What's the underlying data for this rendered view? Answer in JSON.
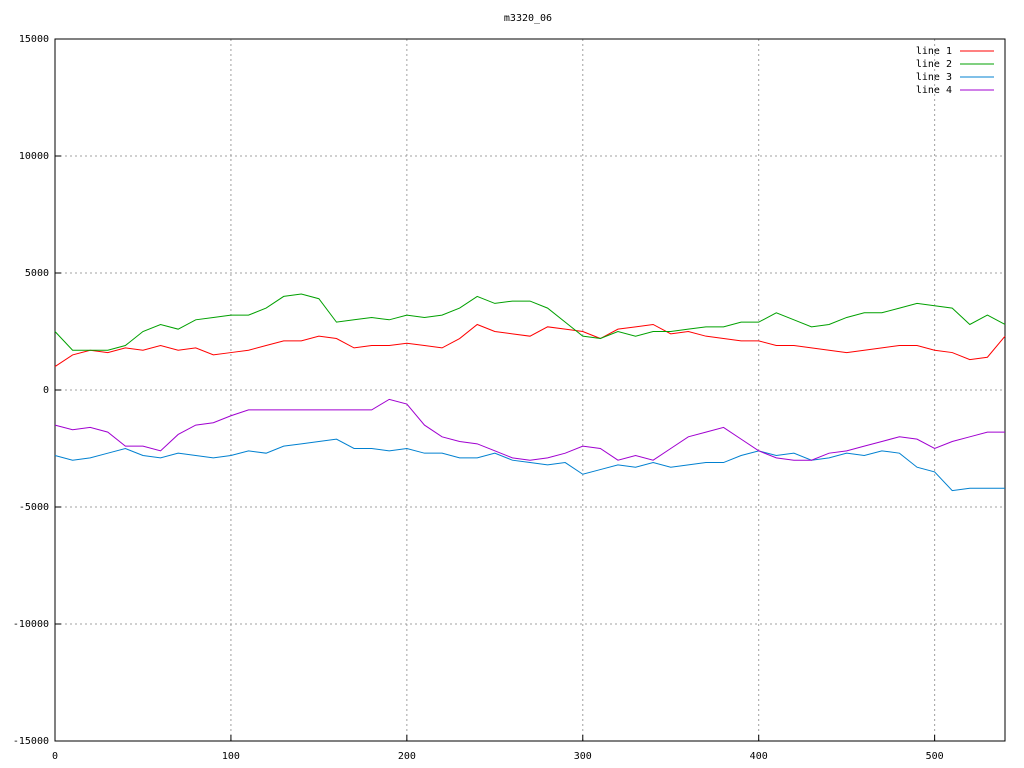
{
  "chart_data": {
    "type": "line",
    "title": "m3320_06",
    "x": [
      0,
      10,
      20,
      30,
      40,
      50,
      60,
      70,
      80,
      90,
      100,
      110,
      120,
      130,
      140,
      150,
      160,
      170,
      180,
      190,
      200,
      210,
      220,
      230,
      240,
      250,
      260,
      270,
      280,
      290,
      300,
      310,
      320,
      330,
      340,
      350,
      360,
      370,
      380,
      390,
      400,
      410,
      420,
      430,
      440,
      450,
      460,
      470,
      480,
      490,
      500,
      510,
      520,
      530,
      540
    ],
    "series": [
      {
        "name": "line 1",
        "color": "#ff0000",
        "values": [
          1000,
          1500,
          1700,
          1600,
          1800,
          1700,
          1900,
          1700,
          1800,
          1500,
          1600,
          1700,
          1900,
          2100,
          2100,
          2300,
          2200,
          1800,
          1900,
          1900,
          2000,
          1900,
          1800,
          2200,
          2800,
          2500,
          2400,
          2300,
          2700,
          2600,
          2500,
          2200,
          2600,
          2700,
          2800,
          2400,
          2500,
          2300,
          2200,
          2100,
          2100,
          1900,
          1900,
          1800,
          1700,
          1600,
          1700,
          1800,
          1900,
          1900,
          1700,
          1600,
          1300,
          1400,
          2300
        ]
      },
      {
        "name": "line 2",
        "color": "#00a000",
        "values": [
          2500,
          1700,
          1700,
          1700,
          1900,
          2500,
          2800,
          2600,
          3000,
          3100,
          3200,
          3200,
          3500,
          4000,
          4100,
          3900,
          2900,
          3000,
          3100,
          3000,
          3200,
          3100,
          3200,
          3500,
          4000,
          3700,
          3800,
          3800,
          3500,
          2900,
          2300,
          2200,
          2500,
          2300,
          2500,
          2500,
          2600,
          2700,
          2700,
          2900,
          2900,
          3300,
          3000,
          2700,
          2800,
          3100,
          3300,
          3300,
          3500,
          3700,
          3600,
          3500,
          2800,
          3200,
          2800
        ]
      },
      {
        "name": "line 3",
        "color": "#0080d0",
        "values": [
          -2800,
          -3000,
          -2900,
          -2700,
          -2500,
          -2800,
          -2900,
          -2700,
          -2800,
          -2900,
          -2800,
          -2600,
          -2700,
          -2400,
          -2300,
          -2200,
          -2100,
          -2500,
          -2500,
          -2600,
          -2500,
          -2700,
          -2700,
          -2900,
          -2900,
          -2700,
          -3000,
          -3100,
          -3200,
          -3100,
          -3600,
          -3400,
          -3200,
          -3300,
          -3100,
          -3300,
          -3200,
          -3100,
          -3100,
          -2800,
          -2600,
          -2800,
          -2700,
          -3000,
          -2900,
          -2700,
          -2800,
          -2600,
          -2700,
          -3300,
          -3500,
          -4300,
          -4200,
          -4200,
          -4200
        ]
      },
      {
        "name": "line 4",
        "color": "#a000d0",
        "values": [
          -1500,
          -1700,
          -1600,
          -1800,
          -2400,
          -2400,
          -2600,
          -1900,
          -1500,
          -1400,
          -1100,
          -850,
          -850,
          -850,
          -850,
          -850,
          -850,
          -850,
          -850,
          -400,
          -600,
          -1500,
          -2000,
          -2200,
          -2300,
          -2600,
          -2900,
          -3000,
          -2900,
          -2700,
          -2400,
          -2500,
          -3000,
          -2800,
          -3000,
          -2500,
          -2000,
          -1800,
          -1600,
          -2100,
          -2600,
          -2900,
          -3000,
          -3000,
          -2700,
          -2600,
          -2400,
          -2200,
          -2000,
          -2100,
          -2500,
          -2200,
          -2000,
          -1800,
          -1800
        ]
      }
    ],
    "xlim": [
      0,
      540
    ],
    "xticks": [
      0,
      100,
      200,
      300,
      400,
      500
    ],
    "ylim": [
      -15000,
      15000
    ],
    "yticks": [
      -15000,
      -10000,
      -5000,
      0,
      5000,
      10000,
      15000
    ],
    "grid": true,
    "legend": "top-right"
  }
}
